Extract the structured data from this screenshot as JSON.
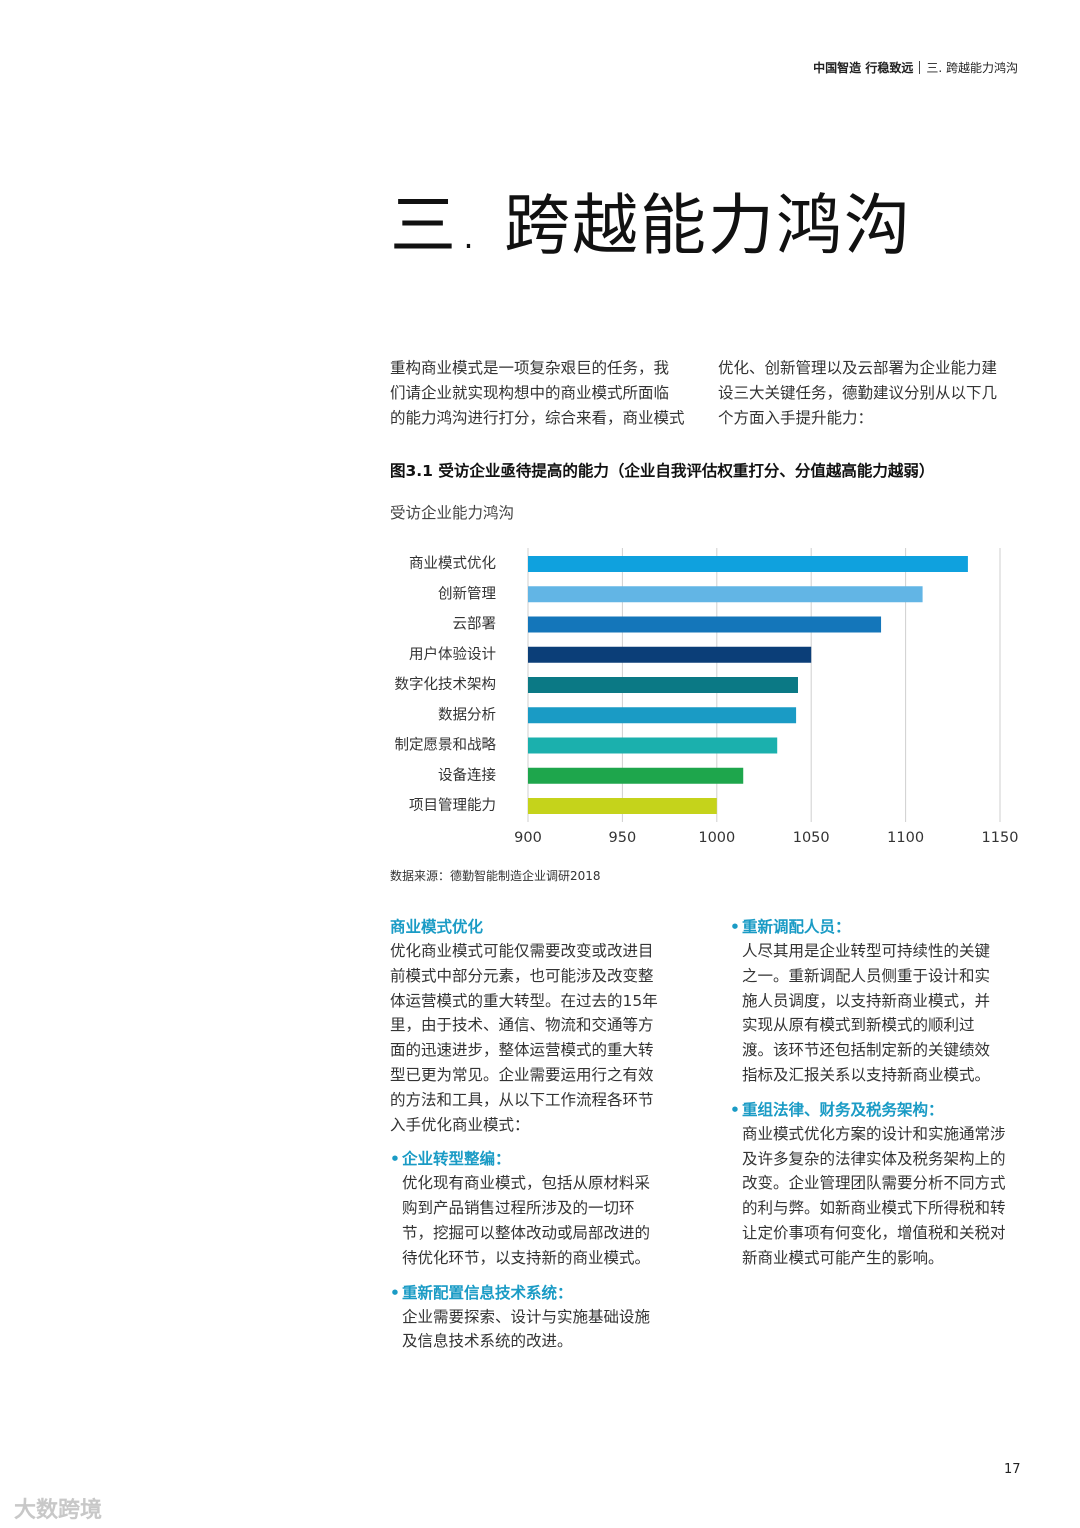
{
  "header": {
    "brand": "中国智造 行稳致远",
    "section": "三. 跨越能力鸿沟"
  },
  "title": "三. 跨越能力鸿沟",
  "intro": {
    "left": [
      "重构商业模式是一项复杂艰巨的任务，我",
      "们请企业就实现构想中的商业模式所面临",
      "的能力鸿沟进行打分，综合来看，商业模式"
    ],
    "right": [
      "优化、创新管理以及云部署为企业能力建",
      "设三大关键任务，德勤建议分别从以下几",
      "个方面入手提升能力："
    ]
  },
  "chart_data": {
    "type": "bar",
    "orientation": "horizontal",
    "title": "图3.1 受访企业亟待提高的能力（企业自我评估权重打分、分值越高能力越弱）",
    "subtitle": "受访企业能力鸿沟",
    "source": "数据来源：德勤智能制造企业调研2018",
    "categories": [
      "商业模式优化",
      "创新管理",
      "云部署",
      "用户体验设计",
      "数字化技术架构",
      "数据分析",
      "制定愿景和战略",
      "设备连接",
      "项目管理能力"
    ],
    "values": [
      1133,
      1109,
      1087,
      1050,
      1043,
      1042,
      1032,
      1014,
      1000
    ],
    "colors": [
      "#0fa1de",
      "#62b5e5",
      "#1476ba",
      "#0b3e78",
      "#0b7985",
      "#1a9bc5",
      "#1bb0ad",
      "#1ea64c",
      "#c5d31b"
    ],
    "xlim": [
      900,
      1150
    ],
    "xticks": [
      900,
      950,
      1000,
      1050,
      1100,
      1150
    ],
    "grid": true
  },
  "body": {
    "left": {
      "heading": "商业模式优化",
      "lines": [
        "优化商业模式可能仅需要改变或改进目",
        "前模式中部分元素，也可能涉及改变整",
        "体运营模式的重大转型。在过去的15年",
        "里，由于技术、通信、物流和交通等方",
        "面的迅速进步，整体运营模式的重大转",
        "型已更为常见。企业需要运用行之有效",
        "的方法和工具，从以下工作流程各环节",
        "入手优化商业模式："
      ],
      "bullets": [
        {
          "heading": "企业转型整编：",
          "lines": [
            "优化现有商业模式，包括从原材料采",
            "购到产品销售过程所涉及的一切环",
            "节，挖掘可以整体改动或局部改进的",
            "待优化环节，以支持新的商业模式。"
          ]
        },
        {
          "heading": "重新配置信息技术系统：",
          "lines": [
            "企业需要探索、设计与实施基础设施",
            "及信息技术系统的改进。"
          ]
        }
      ]
    },
    "right": {
      "bullets": [
        {
          "heading": "重新调配人员：",
          "lines": [
            "人尽其用是企业转型可持续性的关键",
            "之一。重新调配人员侧重于设计和实",
            "施人员调度，以支持新商业模式，并",
            "实现从原有模式到新模式的顺利过",
            "渡。该环节还包括制定新的关键绩效",
            "指标及汇报关系以支持新商业模式。"
          ]
        },
        {
          "heading": "重组法律、财务及税务架构：",
          "lines": [
            "商业模式优化方案的设计和实施通常涉",
            "及许多复杂的法律实体及税务架构上的",
            "改变。企业管理团队需要分析不同方式",
            "的利与弊。如新商业模式下所得税和转",
            "让定价事项有何变化，增值税和关税对",
            "新商业模式可能产生的影响。"
          ]
        }
      ]
    }
  },
  "page_number": "17",
  "watermark": "大数跨境"
}
